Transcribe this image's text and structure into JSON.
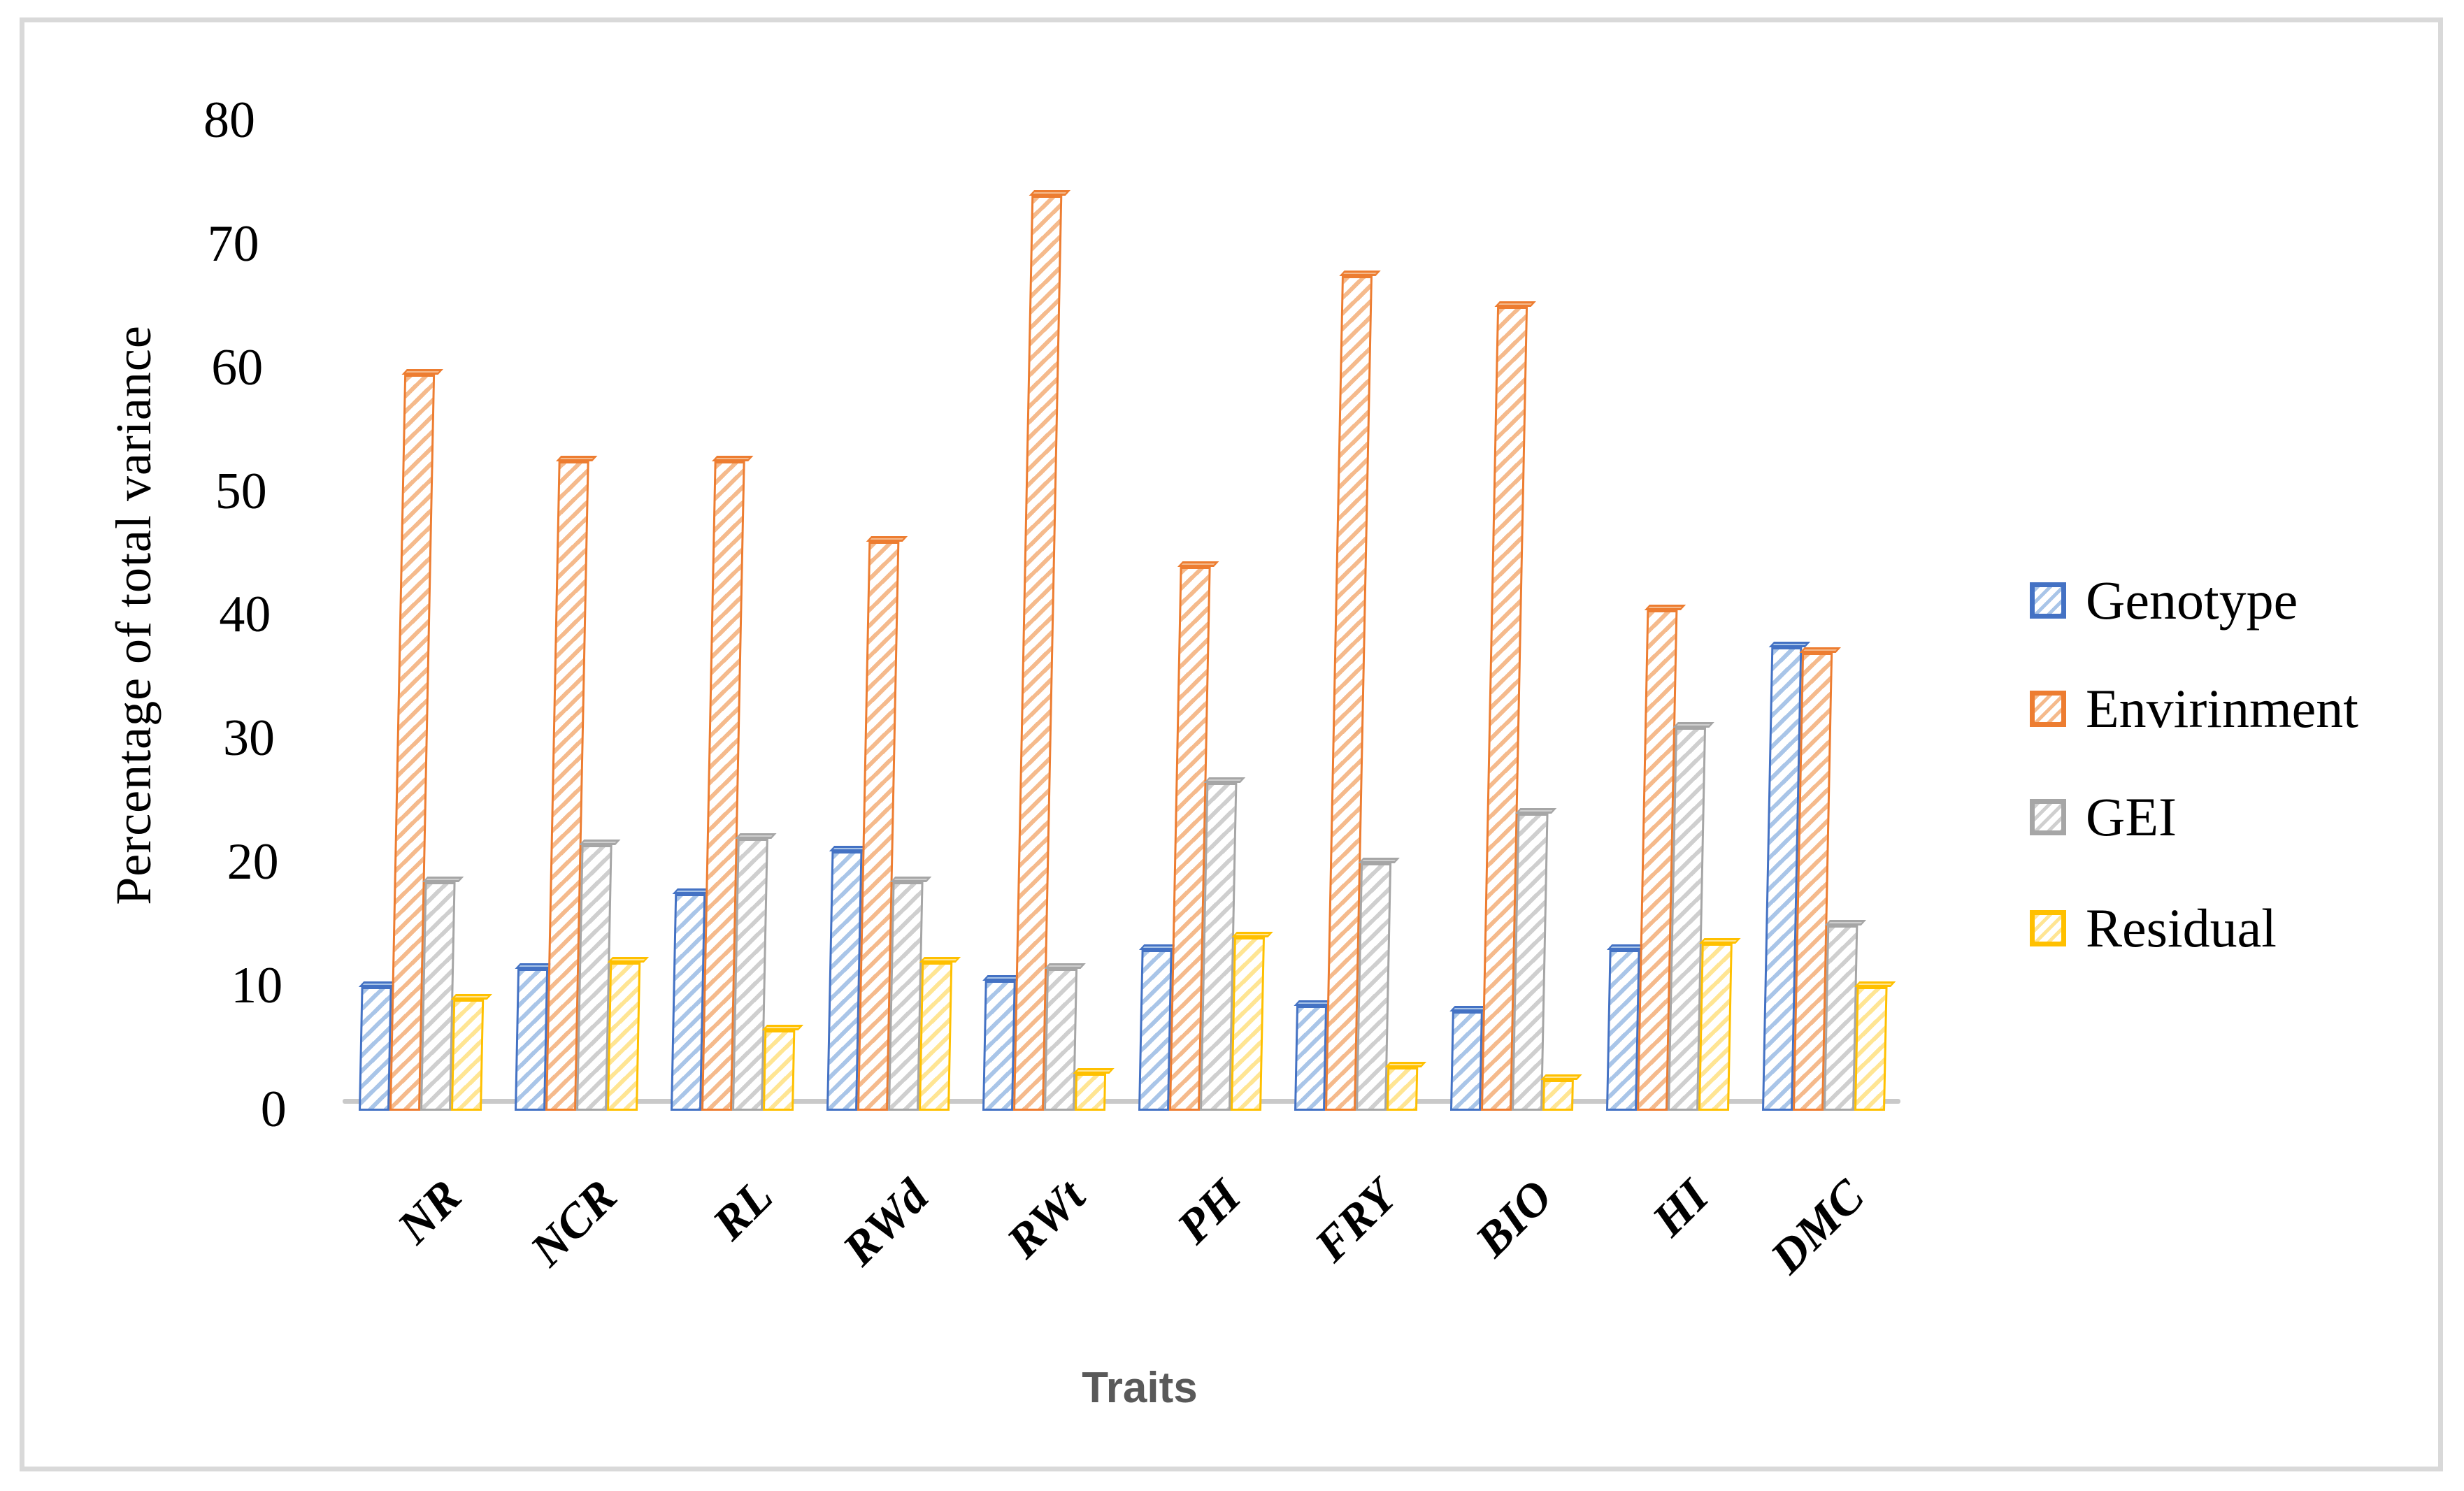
{
  "figure": {
    "border_color": "#d9d9d9",
    "background_color": "#ffffff",
    "baseline_color": "#c9c9c9",
    "axis_text_color": "#000000",
    "xlabel_color": "#595959"
  },
  "chart_data": {
    "type": "bar",
    "title": "",
    "xlabel": "Traits",
    "ylabel": "Percentage of total variance",
    "ylim": [
      0,
      80
    ],
    "yticks": [
      0,
      10,
      20,
      30,
      40,
      50,
      60,
      70,
      80
    ],
    "grid": false,
    "legend_position": "right",
    "style": "3d-hatched-columns",
    "categories": [
      "NR",
      "NCR",
      "RL",
      "RWd",
      "RWt",
      "PH",
      "FRY",
      "BIO",
      "HI",
      "DMC"
    ],
    "series": [
      {
        "name": "Genotype",
        "color": "#4472C4",
        "stripe_color": "#A9C5E8",
        "values": [
          10,
          11.5,
          17.5,
          21,
          10.5,
          13,
          8.5,
          8,
          13,
          37.5
        ]
      },
      {
        "name": "Envirinment",
        "color": "#ED7D31",
        "stripe_color": "#F5BA8C",
        "values": [
          59.5,
          52.5,
          52.5,
          46,
          74,
          44,
          67.5,
          65,
          40.5,
          37
        ]
      },
      {
        "name": "GEI",
        "color": "#A6A6A6",
        "stripe_color": "#CFCFCF",
        "values": [
          18.5,
          21.5,
          22,
          18.5,
          11.5,
          26.5,
          20,
          24,
          31,
          15
        ]
      },
      {
        "name": "Residual",
        "color": "#FFC000",
        "stripe_color": "#FFE593",
        "values": [
          9,
          12,
          6.5,
          12,
          3,
          14,
          3.5,
          2.5,
          13.5,
          10
        ]
      }
    ]
  }
}
